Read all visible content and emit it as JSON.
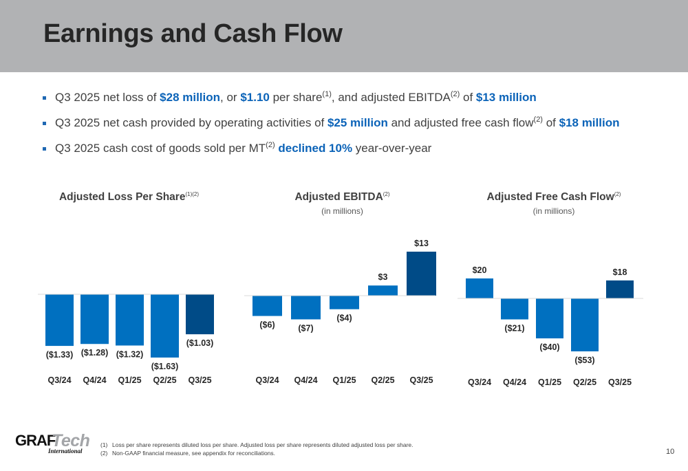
{
  "header": {
    "title": "Earnings and Cash Flow"
  },
  "bullets": [
    {
      "parts": [
        {
          "t": "Q3 2025 net loss of "
        },
        {
          "t": "$28 million",
          "hl": true
        },
        {
          "t": ", or "
        },
        {
          "t": "$1.10",
          "hl": true
        },
        {
          "t": " per share"
        },
        {
          "t": "(1)",
          "sup": true
        },
        {
          "t": ", and adjusted EBITDA"
        },
        {
          "t": "(2)",
          "sup": true
        },
        {
          "t": " of "
        },
        {
          "t": "$13 million",
          "hl": true
        }
      ]
    },
    {
      "parts": [
        {
          "t": "Q3 2025 net cash provided by operating activities of "
        },
        {
          "t": "$25 million",
          "hl": true
        },
        {
          "t": " and adjusted free cash flow"
        },
        {
          "t": "(2)",
          "sup": true
        },
        {
          "t": " of "
        },
        {
          "t": "$18 million",
          "hl": true
        }
      ]
    },
    {
      "parts": [
        {
          "t": "Q3 2025 cash cost of goods sold per MT"
        },
        {
          "t": "(2)",
          "sup": true
        },
        {
          "t": " "
        },
        {
          "t": "declined 10%",
          "hl": true
        },
        {
          "t": " year-over-year"
        }
      ]
    }
  ],
  "colors": {
    "bar": "#0070c0",
    "highlight_bar": "#004b87",
    "baseline": "#d9d9d9",
    "text": "#404040",
    "accent": "#0b63b8"
  },
  "chart_data": [
    {
      "type": "bar",
      "title": "Adjusted Loss Per Share",
      "title_sup": "(1)(2)",
      "subtitle": "",
      "categories": [
        "Q3/24",
        "Q4/24",
        "Q1/25",
        "Q2/25",
        "Q3/25"
      ],
      "values": [
        -1.33,
        -1.28,
        -1.32,
        -1.63,
        -1.03
      ],
      "labels": [
        "($1.33)",
        "($1.28)",
        "($1.32)",
        "($1.63)",
        "($1.03)"
      ],
      "highlight_index": 4,
      "ylim": [
        -1.63,
        0
      ],
      "xlabel": "",
      "ylabel": "",
      "grid": false,
      "legend": "none"
    },
    {
      "type": "bar",
      "title": "Adjusted EBITDA",
      "title_sup": "(2)",
      "subtitle": "(in millions)",
      "categories": [
        "Q3/24",
        "Q4/24",
        "Q1/25",
        "Q2/25",
        "Q3/25"
      ],
      "values": [
        -6,
        -7,
        -4,
        3,
        13
      ],
      "labels": [
        "($6)",
        "($7)",
        "($4)",
        "$3",
        "$13"
      ],
      "highlight_index": 4,
      "ylim": [
        -7,
        13
      ],
      "xlabel": "",
      "ylabel": "",
      "grid": false,
      "legend": "none"
    },
    {
      "type": "bar",
      "title": "Adjusted Free Cash Flow",
      "title_sup": "(2)",
      "subtitle": "(in millions)",
      "categories": [
        "Q3/24",
        "Q4/24",
        "Q1/25",
        "Q2/25",
        "Q3/25"
      ],
      "values": [
        20,
        -21,
        -40,
        -53,
        18
      ],
      "labels": [
        "$20",
        "($21)",
        "($40)",
        "($53)",
        "$18"
      ],
      "highlight_index": 4,
      "ylim": [
        -53,
        20
      ],
      "xlabel": "",
      "ylabel": "",
      "grid": false,
      "legend": "none"
    }
  ],
  "footnotes": [
    {
      "num": "(1)",
      "text": "Loss per share represents diluted loss per share. Adjusted loss per share represents diluted adjusted loss per share."
    },
    {
      "num": "(2)",
      "text": "Non-GAAP financial measure, see appendix for reconciliations."
    }
  ],
  "logo": {
    "part1": "GRAF",
    "part2": "Tech",
    "part3": "International"
  },
  "page_number": "10"
}
